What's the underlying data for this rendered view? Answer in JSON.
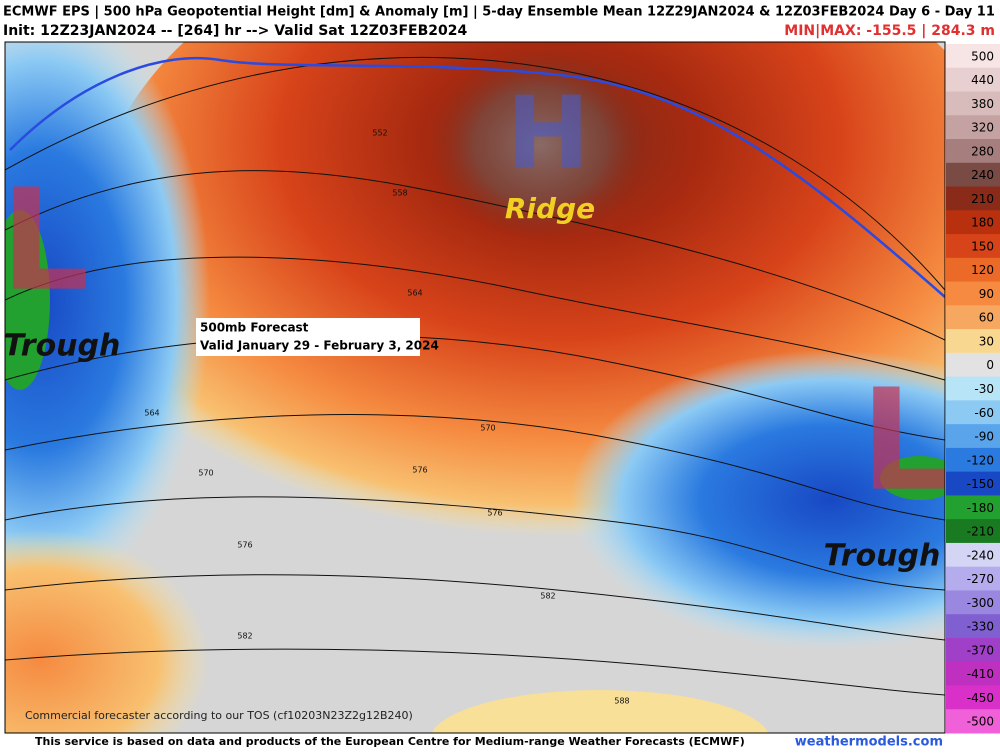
{
  "header": {
    "line1": "ECMWF EPS | 500 hPa Geopotential Height [dm] & Anomaly [m] | 5-day Ensemble Mean 12Z29JAN2024 & 12Z03FEB2024   Day 6 - Day 11",
    "init": "Init: 12Z23JAN2024 -- [264] hr --> Valid Sat 12Z03FEB2024",
    "minmax": "MIN|MAX: -155.5 | 284.3 m"
  },
  "map": {
    "high": "H",
    "ridge": "Ridge",
    "lows": [
      "L",
      "L"
    ],
    "troughs": [
      "Trough",
      "Trough"
    ],
    "forecast_box": [
      "500mb Forecast",
      "Valid January 29 - February 3, 2024"
    ],
    "contour_labels": [
      552,
      558,
      564,
      564,
      570,
      570,
      576,
      576,
      576,
      582,
      582,
      588
    ],
    "note": "Commercial forecaster according to our TOS (cf10203N23Z2g12B240)"
  },
  "colorbar": {
    "labels": [
      500,
      440,
      380,
      320,
      280,
      240,
      210,
      180,
      150,
      120,
      90,
      60,
      30,
      0,
      -30,
      -60,
      -90,
      -120,
      -150,
      -180,
      -210,
      -240,
      -270,
      -300,
      -330,
      -370,
      -410,
      -450,
      -500
    ],
    "colors": [
      "#f7e4e4",
      "#e8d0d0",
      "#d8bcbc",
      "#c4a2a2",
      "#a67e7e",
      "#7a4a44",
      "#8a2a18",
      "#b8300e",
      "#d8441a",
      "#ec6a28",
      "#f58a40",
      "#f7a860",
      "#f8d890",
      "#e2e2e2",
      "#b8e4f8",
      "#8ccaf4",
      "#5aa4ec",
      "#2a7ae0",
      "#1848c4",
      "#22a030",
      "#1a7a22",
      "#d4d4f4",
      "#b4acec",
      "#9a88e0",
      "#8060d0",
      "#a040c8",
      "#c030c0",
      "#d830c8",
      "#f060d8"
    ]
  },
  "footer": {
    "left": "This service is based on data and products of the European Centre for Medium-range Weather Forecasts (ECMWF)",
    "right": "weathermodels.com"
  }
}
